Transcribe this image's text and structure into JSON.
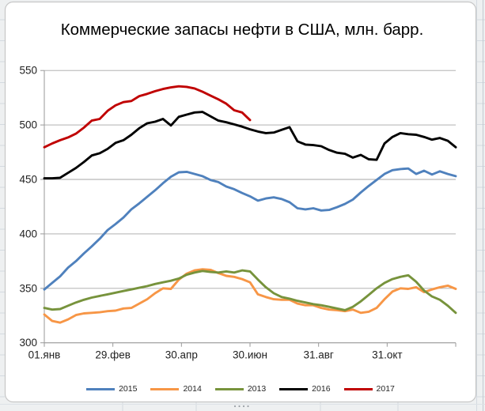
{
  "title": "Коммерческие запасы нефти в США, млн. барр.",
  "chart_data": {
    "type": "line",
    "title": "Коммерческие запасы нефти в США, млн. барр.",
    "xlabel": "",
    "ylabel": "",
    "ylim": [
      300,
      550
    ],
    "y_ticks": [
      300,
      350,
      400,
      450,
      500,
      550
    ],
    "x_tick_labels": [
      "01.янв",
      "29.фев",
      "30.апр",
      "30.июн",
      "31.авг",
      "31.окт"
    ],
    "grid": "horizontal",
    "legend_position": "bottom",
    "points_per_year": 53,
    "axis_color": "#9a9a9a",
    "gridline_color": "#a6a6a6",
    "label_color": "#1f1f1f",
    "series": [
      {
        "name": "2015",
        "color": "#4F81BD",
        "values": [
          349,
          355,
          361,
          369,
          375,
          382,
          388.5,
          395.5,
          403.5,
          409,
          415,
          422.5,
          428,
          434,
          440,
          446.5,
          452.5,
          456.5,
          457,
          455,
          453,
          449.5,
          447.5,
          443.5,
          441,
          437.5,
          434.5,
          430.5,
          432.5,
          433.5,
          432,
          429,
          423.5,
          422.5,
          423.5,
          421.5,
          422,
          424.5,
          427.5,
          431.5,
          438,
          444,
          449.5,
          455,
          458.5,
          459.5,
          460,
          455,
          458,
          454.5,
          457.5,
          455,
          453
        ]
      },
      {
        "name": "2014",
        "color": "#F79646",
        "values": [
          326,
          320,
          318.5,
          321.5,
          325.5,
          327,
          327.5,
          328,
          329,
          329.5,
          331.5,
          332,
          336,
          340,
          345.5,
          350,
          349.5,
          358,
          363.5,
          366.5,
          367.5,
          367,
          364,
          361.5,
          360.5,
          358.5,
          355.5,
          344.5,
          342,
          340,
          339.5,
          339.5,
          336,
          334.5,
          334.5,
          332,
          330.5,
          330,
          329,
          330.5,
          327.5,
          328.5,
          332,
          340,
          347,
          350,
          349.5,
          351,
          346.5,
          349,
          351,
          352.5,
          349.5
        ]
      },
      {
        "name": "2013",
        "color": "#77933C",
        "values": [
          332,
          330.5,
          331,
          334,
          337,
          339.5,
          341.5,
          343,
          344.5,
          346,
          347.5,
          349,
          350.5,
          352,
          354,
          355.5,
          357,
          359,
          362.5,
          364.5,
          366,
          365,
          364.5,
          365.5,
          364.5,
          366.5,
          365.5,
          358,
          351,
          345.5,
          342,
          340.5,
          338.5,
          337,
          335.5,
          334.5,
          333,
          331.5,
          330,
          333,
          338,
          344,
          350,
          355,
          358.5,
          360.5,
          362,
          356,
          348,
          342.5,
          339.5,
          334,
          327.5
        ]
      },
      {
        "name": "2016",
        "color": "#000000",
        "values": [
          451,
          451,
          451.5,
          456,
          460.5,
          466,
          472,
          474,
          478,
          483.5,
          486,
          491,
          497,
          501.5,
          503,
          505.5,
          499.5,
          507.5,
          509.5,
          511.5,
          512,
          508,
          504,
          502.5,
          500.5,
          498.5,
          496,
          494,
          492.5,
          493,
          495.5,
          498,
          485,
          482,
          481.5,
          480.5,
          477,
          474.5,
          473.5,
          470,
          472.5,
          468.5,
          468,
          483,
          489,
          492.5,
          491.5,
          491,
          489,
          486.5,
          488,
          485.5,
          479.5
        ]
      },
      {
        "name": "2017",
        "color": "#C00000",
        "values": [
          479.5,
          483,
          486,
          488.5,
          492,
          497.5,
          504,
          505.5,
          513,
          518,
          521,
          522,
          526.5,
          528.5,
          531,
          533,
          534.5,
          535.5,
          535,
          533.5,
          530.5,
          527,
          523.5,
          519.5,
          513.5,
          511.5,
          504.5
        ]
      }
    ]
  },
  "legend": {
    "items": [
      "2015",
      "2014",
      "2013",
      "2016",
      "2017"
    ]
  }
}
